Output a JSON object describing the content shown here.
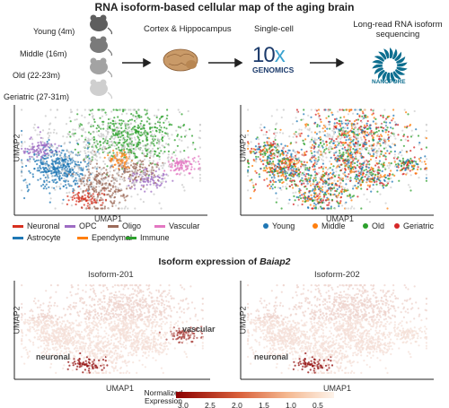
{
  "header": {
    "title": "RNA isoform-based cellular map of the aging brain"
  },
  "pipeline": {
    "ages": [
      "Young (4m)",
      "Middle (16m)",
      "Old (22-23m)",
      "Geriatric (27-31m)"
    ],
    "mouse_shades": [
      "#5e5e5e",
      "#7a7a7a",
      "#a3a3a3",
      "#cfcfcf"
    ],
    "tissue_label": "Cortex & Hippocampus",
    "singlecell_label": "Single-cell",
    "tenx_logo_main": "10",
    "tenx_logo_x": "x",
    "tenx_logo_sub": "GENOMICS",
    "longread_label_line1": "Long-read RNA isoform",
    "longread_label_line2": "sequencing",
    "nanopore_text": "NANOPORE"
  },
  "umap_top_left": {
    "xlabel": "UMAP1",
    "ylabel": "UMAP2",
    "legend": [
      {
        "name": "Neuronal",
        "color": "#d7301f"
      },
      {
        "name": "OPC",
        "color": "#9e6cc3"
      },
      {
        "name": "Oligo",
        "color": "#9c6b5a"
      },
      {
        "name": "Vascular",
        "color": "#e377c2"
      },
      {
        "name": "Astrocyte",
        "color": "#1f77b4"
      },
      {
        "name": "Ependymal",
        "color": "#ff7f0e"
      },
      {
        "name": "Immune",
        "color": "#2ca02c"
      }
    ]
  },
  "umap_top_right": {
    "xlabel": "UMAP1",
    "ylabel": "UMAP2",
    "legend": [
      {
        "name": "Young",
        "color": "#1f77b4"
      },
      {
        "name": "Middle",
        "color": "#ff7f0e"
      },
      {
        "name": "Old",
        "color": "#2ca02c"
      },
      {
        "name": "Geriatric",
        "color": "#d62728"
      }
    ]
  },
  "isoform_section": {
    "title_prefix": "Isoform expression of ",
    "gene": "Baiap2",
    "panels": [
      {
        "title": "Isoform-201",
        "xlabel": "UMAP1",
        "ylabel": "UMAP2",
        "annotations": [
          "vascular",
          "neuronal"
        ]
      },
      {
        "title": "Isoform-202",
        "xlabel": "UMAP1",
        "ylabel": "UMAP2",
        "annotations": [
          "neuronal"
        ]
      }
    ]
  },
  "colorbar": {
    "label_line1": "Normalized",
    "label_line2": "Expression",
    "ticks": [
      "3.0",
      "2.5",
      "2.0",
      "1.5",
      "1.0",
      "0.5"
    ],
    "color_high": "#8b0000",
    "color_low": "#fdf3ea"
  }
}
